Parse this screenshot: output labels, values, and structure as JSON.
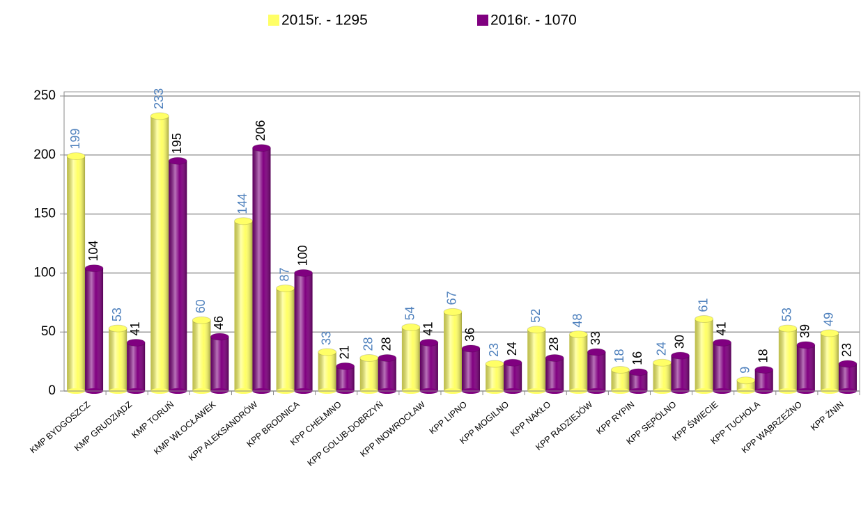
{
  "chart_data": {
    "type": "bar",
    "categories": [
      "KMP BYDGOSZCZ",
      "KMP GRUDZIĄDZ",
      "KMP TORUŃ",
      "KMP WŁOCŁAWEK",
      "KPP ALEKSANDRÓW",
      "KPP BRODNICA",
      "KPP CHEŁMNO",
      "KPP GOLUB-DOBRZYŃ",
      "KPP INOWROCŁAW",
      "KPP LIPNO",
      "KPP MOGILNO",
      "KPP NAKŁO",
      "KPP RADZIEJÓW",
      "KPP RYPIN",
      "KPP SĘPÓLNO",
      "KPP ŚWIECIE",
      "KPP TUCHOLA",
      "KPP WĄBRZEŹNO",
      "KPP ŻNIN"
    ],
    "series": [
      {
        "name": "2015r. - 1295",
        "color": "#ffff66",
        "label_color": "#4f81bd",
        "values": [
          199,
          53,
          233,
          60,
          144,
          87,
          33,
          28,
          54,
          67,
          23,
          52,
          48,
          18,
          24,
          61,
          9,
          53,
          49
        ]
      },
      {
        "name": "2016r. - 1070",
        "color": "#800080",
        "label_color": "#000000",
        "values": [
          104,
          41,
          195,
          46,
          206,
          100,
          21,
          28,
          41,
          36,
          24,
          28,
          33,
          16,
          30,
          41,
          18,
          39,
          23
        ]
      }
    ],
    "ylim": [
      0,
      250
    ],
    "yticks": [
      0,
      50,
      100,
      150,
      200,
      250
    ],
    "grid": true,
    "legend": "top"
  }
}
